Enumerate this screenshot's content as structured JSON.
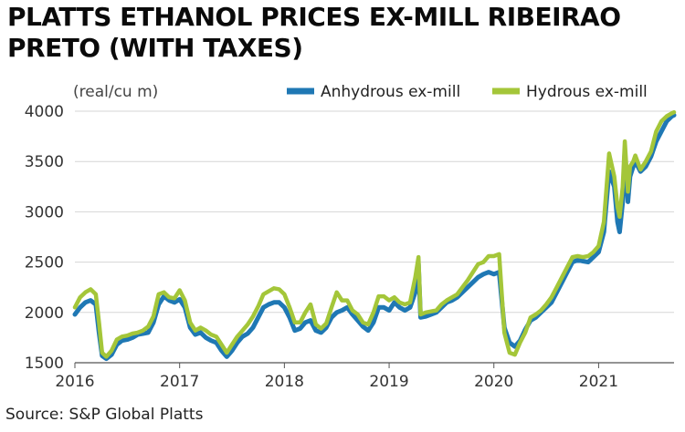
{
  "chart_data": {
    "type": "line",
    "title": "PLATTS ETHANOL PRICES EX-MILL RIBEIRAO PRETO (WITH TAXES)",
    "source": "Source: S&P Global Platts",
    "ylabel": "(real/cu m)",
    "xlabel": "",
    "x_ticks": [
      "2016",
      "2017",
      "2018",
      "2019",
      "2020",
      "2021"
    ],
    "y_ticks": [
      1500,
      2000,
      2500,
      3000,
      3500,
      4000
    ],
    "ylim": [
      1500,
      4000
    ],
    "xlim": [
      2016.0,
      2021.72
    ],
    "grid": "horizontal",
    "legend": "top-right",
    "series": [
      {
        "name": "Anhydrous ex-mill",
        "color": "#1f78b4",
        "x": [
          2016.0,
          2016.05,
          2016.1,
          2016.15,
          2016.2,
          2016.23,
          2016.26,
          2016.3,
          2016.35,
          2016.4,
          2016.45,
          2016.5,
          2016.55,
          2016.6,
          2016.65,
          2016.7,
          2016.75,
          2016.8,
          2016.85,
          2016.9,
          2016.95,
          2017.0,
          2017.05,
          2017.1,
          2017.15,
          2017.2,
          2017.25,
          2017.3,
          2017.35,
          2017.4,
          2017.45,
          2017.5,
          2017.55,
          2017.6,
          2017.65,
          2017.7,
          2017.75,
          2017.8,
          2017.85,
          2017.9,
          2017.95,
          2018.0,
          2018.05,
          2018.1,
          2018.15,
          2018.2,
          2018.25,
          2018.3,
          2018.35,
          2018.4,
          2018.45,
          2018.5,
          2018.55,
          2018.6,
          2018.65,
          2018.7,
          2018.75,
          2018.8,
          2018.85,
          2018.9,
          2018.95,
          2019.0,
          2019.05,
          2019.1,
          2019.15,
          2019.2,
          2019.25,
          2019.28,
          2019.3,
          2019.35,
          2019.4,
          2019.45,
          2019.5,
          2019.55,
          2019.6,
          2019.65,
          2019.7,
          2019.75,
          2019.8,
          2019.85,
          2019.9,
          2019.95,
          2020.0,
          2020.05,
          2020.1,
          2020.15,
          2020.2,
          2020.25,
          2020.3,
          2020.35,
          2020.4,
          2020.45,
          2020.5,
          2020.55,
          2020.6,
          2020.65,
          2020.7,
          2020.75,
          2020.8,
          2020.85,
          2020.9,
          2020.95,
          2021.0,
          2021.05,
          2021.1,
          2021.15,
          2021.18,
          2021.2,
          2021.23,
          2021.25,
          2021.28,
          2021.3,
          2021.33,
          2021.35,
          2021.4,
          2021.45,
          2021.5,
          2021.55,
          2021.6,
          2021.65,
          2021.7,
          2021.72
        ],
        "y": [
          1980,
          2050,
          2100,
          2120,
          2080,
          1800,
          1570,
          1540,
          1580,
          1680,
          1720,
          1730,
          1750,
          1780,
          1790,
          1800,
          1900,
          2080,
          2160,
          2120,
          2100,
          2130,
          2050,
          1850,
          1780,
          1800,
          1750,
          1720,
          1700,
          1620,
          1560,
          1620,
          1700,
          1760,
          1790,
          1850,
          1950,
          2050,
          2080,
          2100,
          2100,
          2050,
          1950,
          1820,
          1840,
          1900,
          1920,
          1820,
          1800,
          1850,
          1950,
          2000,
          2020,
          2050,
          1980,
          1920,
          1860,
          1820,
          1900,
          2050,
          2050,
          2020,
          2100,
          2050,
          2020,
          2050,
          2200,
          2480,
          1950,
          1960,
          1980,
          2000,
          2050,
          2100,
          2120,
          2150,
          2200,
          2250,
          2300,
          2350,
          2380,
          2400,
          2380,
          2400,
          1850,
          1700,
          1660,
          1720,
          1830,
          1920,
          1950,
          2000,
          2050,
          2100,
          2200,
          2300,
          2400,
          2500,
          2520,
          2510,
          2500,
          2550,
          2600,
          2800,
          3400,
          3250,
          2900,
          2800,
          3100,
          3600,
          3100,
          3350,
          3450,
          3500,
          3400,
          3450,
          3550,
          3700,
          3800,
          3900,
          3950,
          3960
        ]
      },
      {
        "name": "Hydrous ex-mill",
        "color": "#a4c639",
        "x": [
          2016.0,
          2016.05,
          2016.1,
          2016.15,
          2016.2,
          2016.23,
          2016.26,
          2016.3,
          2016.35,
          2016.4,
          2016.45,
          2016.5,
          2016.55,
          2016.6,
          2016.65,
          2016.7,
          2016.75,
          2016.8,
          2016.85,
          2016.9,
          2016.95,
          2017.0,
          2017.05,
          2017.1,
          2017.15,
          2017.2,
          2017.25,
          2017.3,
          2017.35,
          2017.4,
          2017.45,
          2017.5,
          2017.55,
          2017.6,
          2017.65,
          2017.7,
          2017.75,
          2017.8,
          2017.85,
          2017.9,
          2017.95,
          2018.0,
          2018.05,
          2018.1,
          2018.15,
          2018.2,
          2018.25,
          2018.3,
          2018.35,
          2018.4,
          2018.45,
          2018.5,
          2018.55,
          2018.6,
          2018.65,
          2018.7,
          2018.75,
          2018.8,
          2018.85,
          2018.9,
          2018.95,
          2019.0,
          2019.05,
          2019.1,
          2019.15,
          2019.2,
          2019.25,
          2019.28,
          2019.3,
          2019.35,
          2019.4,
          2019.45,
          2019.5,
          2019.55,
          2019.6,
          2019.65,
          2019.7,
          2019.75,
          2019.8,
          2019.85,
          2019.9,
          2019.95,
          2020.0,
          2020.05,
          2020.1,
          2020.15,
          2020.2,
          2020.25,
          2020.3,
          2020.35,
          2020.4,
          2020.45,
          2020.5,
          2020.55,
          2020.6,
          2020.65,
          2020.7,
          2020.75,
          2020.8,
          2020.85,
          2020.9,
          2020.95,
          2021.0,
          2021.05,
          2021.1,
          2021.15,
          2021.18,
          2021.2,
          2021.23,
          2021.25,
          2021.28,
          2021.3,
          2021.33,
          2021.35,
          2021.4,
          2021.45,
          2021.5,
          2021.55,
          2021.6,
          2021.65,
          2021.7,
          2021.72
        ],
        "y": [
          2050,
          2150,
          2200,
          2230,
          2180,
          1900,
          1600,
          1560,
          1620,
          1730,
          1760,
          1770,
          1790,
          1800,
          1820,
          1860,
          1960,
          2180,
          2200,
          2150,
          2140,
          2220,
          2120,
          1900,
          1820,
          1850,
          1820,
          1780,
          1760,
          1680,
          1600,
          1680,
          1760,
          1820,
          1880,
          1960,
          2060,
          2180,
          2210,
          2240,
          2230,
          2180,
          2050,
          1900,
          1900,
          2000,
          2080,
          1880,
          1840,
          1890,
          2050,
          2200,
          2120,
          2120,
          2020,
          1980,
          1900,
          1880,
          2000,
          2160,
          2160,
          2120,
          2150,
          2100,
          2080,
          2100,
          2350,
          2550,
          1980,
          2000,
          2010,
          2020,
          2080,
          2120,
          2150,
          2180,
          2250,
          2320,
          2400,
          2480,
          2500,
          2560,
          2560,
          2580,
          1800,
          1600,
          1580,
          1700,
          1800,
          1950,
          1980,
          2020,
          2080,
          2150,
          2250,
          2350,
          2450,
          2550,
          2560,
          2550,
          2560,
          2600,
          2660,
          2900,
          3580,
          3350,
          3050,
          2950,
          3250,
          3700,
          3200,
          3450,
          3500,
          3560,
          3420,
          3500,
          3600,
          3800,
          3900,
          3950,
          3980,
          3990
        ]
      }
    ]
  }
}
